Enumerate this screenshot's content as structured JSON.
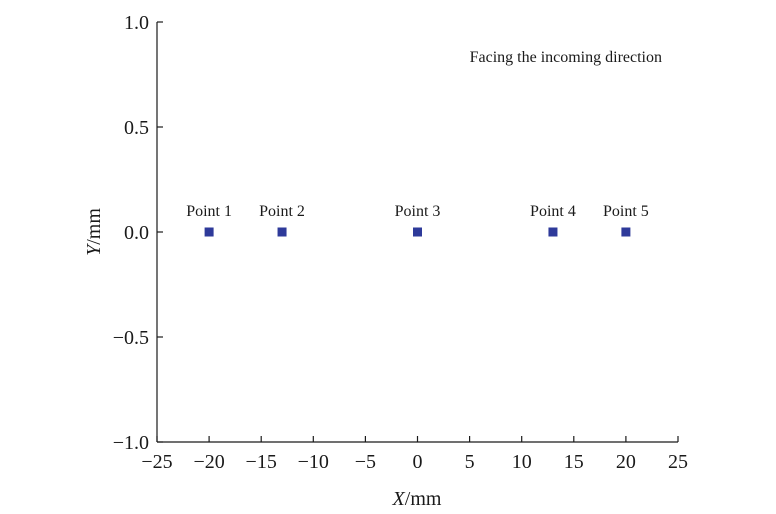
{
  "chart_data": {
    "type": "scatter",
    "xlabel": {
      "var": "X",
      "unit": "/mm"
    },
    "ylabel": {
      "var": "Y",
      "unit": "/mm"
    },
    "xlim": [
      -25,
      25
    ],
    "ylim": [
      -1.0,
      1.0
    ],
    "xticks": [
      "−25",
      "−20",
      "−15",
      "−10",
      "−5",
      "0",
      "5",
      "10",
      "15",
      "20",
      "25"
    ],
    "yticks": [
      "1.0",
      "0.5",
      "0.0",
      "−0.5",
      "−1.0"
    ],
    "annotation": "Facing the incoming direction",
    "grid": false,
    "marker_color": "#2e3a9a",
    "points": [
      {
        "label": "Point 1",
        "x": -20,
        "y": 0.0
      },
      {
        "label": "Point 2",
        "x": -13,
        "y": 0.0
      },
      {
        "label": "Point 3",
        "x": 0,
        "y": 0.0
      },
      {
        "label": "Point 4",
        "x": 13,
        "y": 0.0
      },
      {
        "label": "Point 5",
        "x": 20,
        "y": 0.0
      }
    ]
  }
}
